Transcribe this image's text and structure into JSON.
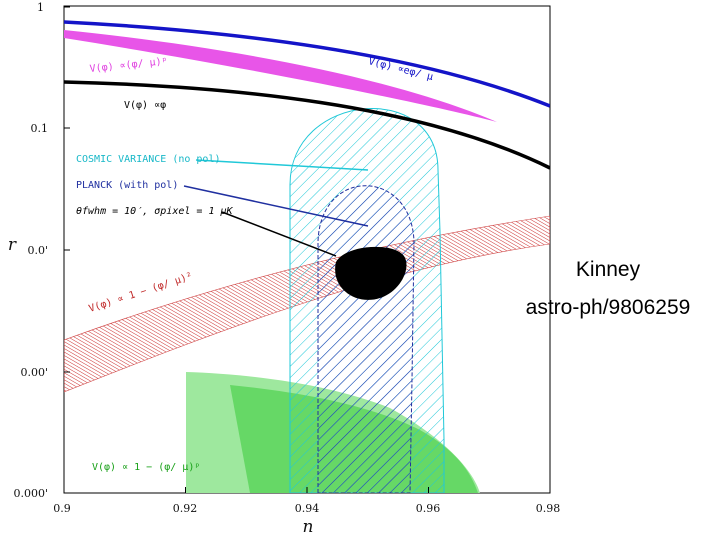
{
  "chart_data": {
    "type": "contour",
    "title": "",
    "xlabel": "n",
    "ylabel": "r",
    "xlim": [
      0.9,
      0.98
    ],
    "x_ticks": [
      "0.9",
      "0.92",
      "0.94",
      "0.96",
      "0.98"
    ],
    "y_ticks": [
      "0.000'",
      "0.00'",
      "0.0'",
      "0.1",
      "1"
    ],
    "regions": [
      {
        "name": "V(φ) ∝ e^{φ/μ}",
        "color": "#1010c0",
        "kind": "line",
        "label": "V(φ)  ∝eφ/ μ"
      },
      {
        "name": "V(φ) ∝ (φ/μ)^p",
        "color": "#e040e0",
        "kind": "band",
        "label": "V(φ)  ∝(φ/ μ)ᵖ"
      },
      {
        "name": "V(φ) ∝ φ",
        "color": "#000000",
        "kind": "line",
        "label": "V(φ)  ∝φ"
      },
      {
        "name": "V(φ) ∝ 1 - (φ/μ)^2",
        "color": "#d04040",
        "kind": "band",
        "label": "V(φ)  ∝ 1  −  (φ/ μ)²"
      },
      {
        "name": "V(φ) ∝ 1 - (φ/μ)^p",
        "color": "#30c030",
        "kind": "region",
        "label": "V(φ)  ∝ 1  −  (φ/ μ)ᵖ"
      },
      {
        "name": "COSMIC VARIANCE (no pol)",
        "color": "#20c8d8",
        "kind": "error-region",
        "label": "COSMIC VARIANCE (no pol)"
      },
      {
        "name": "PLANCK (with pol)",
        "color": "#2030a0",
        "kind": "error-region",
        "label": "PLANCK (with pol)"
      },
      {
        "name": "θ_fwhm = 10', σ_pixel = 1 μK",
        "color": "#000000",
        "kind": "error-region",
        "label": "θfwhm = 10′,  σpixel = 1  μK"
      }
    ]
  },
  "caption": {
    "line1": "Kinney",
    "line2": "astro-ph/9806259"
  }
}
